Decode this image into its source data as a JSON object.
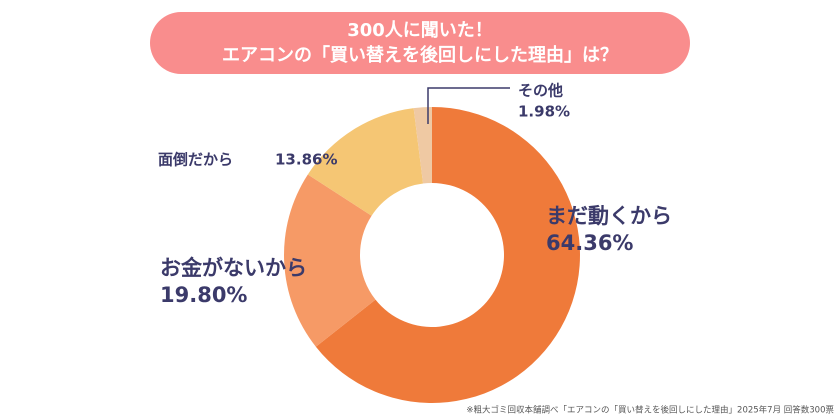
{
  "chart_data": {
    "type": "donut",
    "title": "300人に聞いた！",
    "subtitle": "エアコンの「買い替えを後回しにした理由」は？",
    "categories": [
      "まだ動くから",
      "お金がないから",
      "面倒だから",
      "その他"
    ],
    "values": [
      64.36,
      19.8,
      13.86,
      1.98
    ],
    "value_labels": [
      "64.36%",
      "19.80%",
      "13.86%",
      "1.98%"
    ],
    "colors": [
      "#ef7a3a",
      "#f69a66",
      "#f5c674",
      "#efc9a3"
    ],
    "source": "※粗大ゴミ回収本舗調べ「エアコンの「買い替えを後回しにした理由」2025年7月 回答数300票"
  }
}
